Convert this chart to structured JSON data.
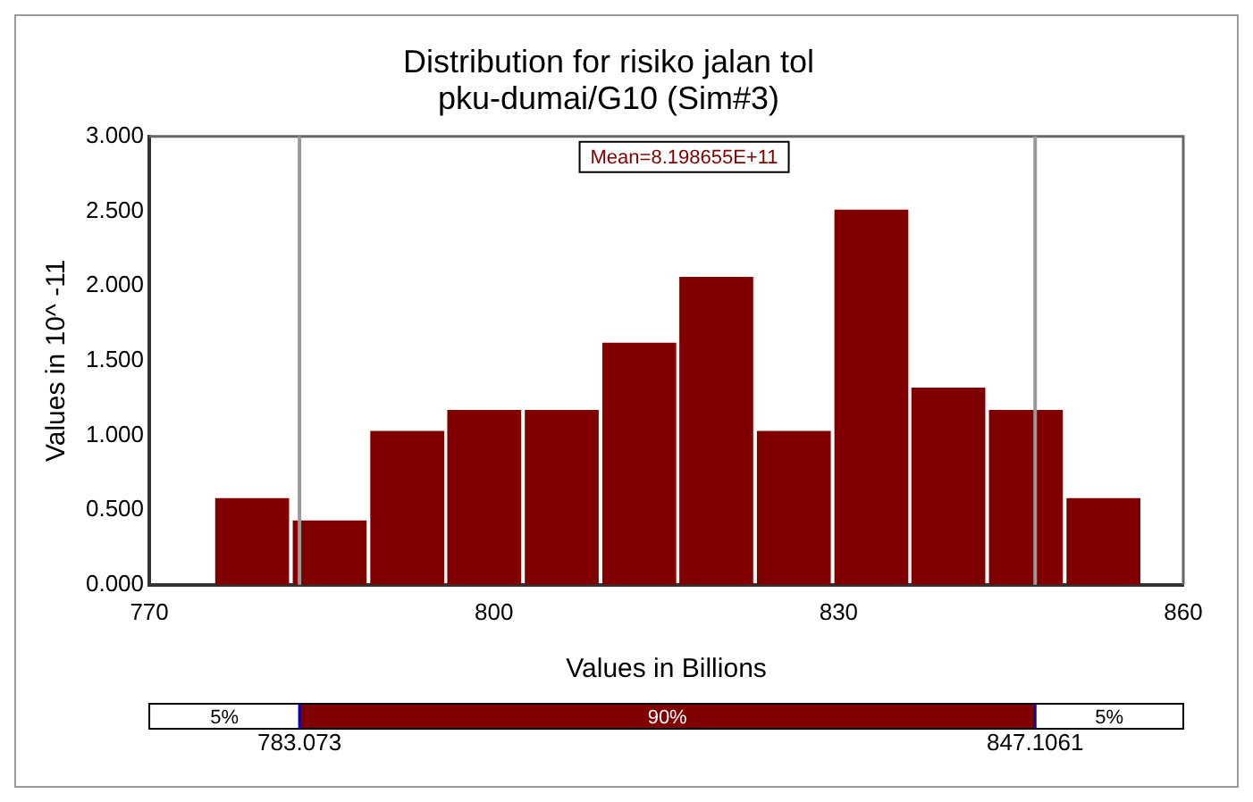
{
  "chart_data": {
    "type": "histogram",
    "title": "Distribution for risiko jalan tol\npku-dumai/G10 (Sim#3)",
    "xlabel": "Values in Billions",
    "ylabel": "Values in 10^ -11",
    "bins": [
      775.6,
      782.3,
      789.1,
      795.8,
      802.5,
      809.3,
      816.0,
      822.7,
      829.5,
      836.2,
      842.9,
      849.7,
      856.4
    ],
    "values": [
      0.58,
      0.43,
      1.03,
      1.17,
      1.17,
      1.62,
      2.06,
      1.03,
      2.51,
      1.32,
      1.17,
      0.58
    ],
    "color": "#800000",
    "xlim": [
      770,
      860
    ],
    "xticks": [
      770,
      800,
      830,
      860
    ],
    "ylim": [
      0,
      3
    ],
    "yticks": [
      {
        "value": 0,
        "label": "0.000"
      },
      {
        "value": 0.5,
        "label": "0.500"
      },
      {
        "value": 1,
        "label": "1.000"
      },
      {
        "value": 1.5,
        "label": "1.500"
      },
      {
        "value": 2,
        "label": "2.000"
      },
      {
        "value": 2.5,
        "label": "2.500"
      },
      {
        "value": 3,
        "label": "3.000"
      }
    ],
    "ref_lines": [
      {
        "axis": "x",
        "value": 783.073,
        "color": "#999999"
      },
      {
        "axis": "x",
        "value": 847.1061,
        "color": "#999999"
      }
    ],
    "annotations": [
      "Mean=8.198655E+11",
      "5%",
      "90%",
      "5%",
      "783.073",
      "847.1061"
    ],
    "grid": false,
    "legend": false
  }
}
